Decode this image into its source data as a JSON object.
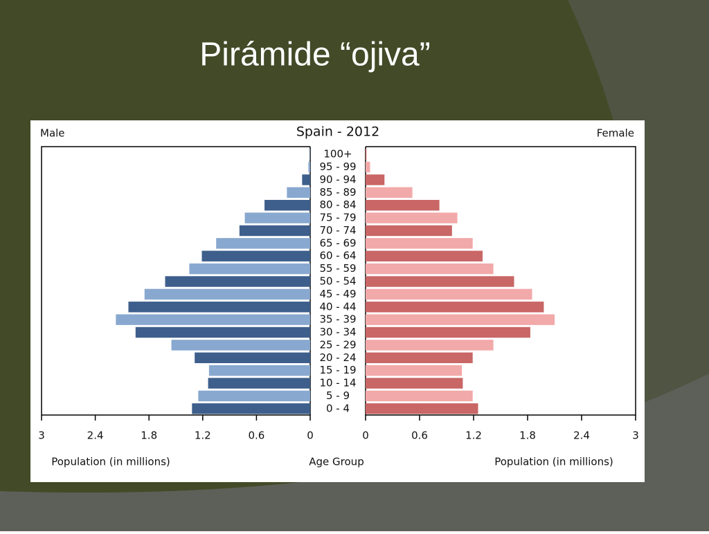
{
  "slide_title": "Pirámide “ojiva”",
  "chart_data": {
    "type": "pyramid",
    "title": "Spain - 2012",
    "left_label": "Male",
    "right_label": "Female",
    "left_axis_title": "Population (in millions)",
    "center_axis_title": "Age Group",
    "right_axis_title": "Population (in millions)",
    "categories": [
      "0 - 4",
      "5 - 9",
      "10 - 14",
      "15 - 19",
      "20 - 24",
      "25 - 29",
      "30 - 34",
      "35 - 39",
      "40 - 44",
      "45 - 49",
      "50 - 54",
      "55 - 59",
      "60 - 64",
      "65 - 69",
      "70 - 74",
      "75 - 79",
      "80 - 84",
      "85 - 89",
      "90 - 94",
      "95 - 99",
      "100+"
    ],
    "series": [
      {
        "name": "Male",
        "side": "left",
        "colors": [
          "#3e5f8c",
          "#88a8cf"
        ],
        "values": [
          1.32,
          1.25,
          1.14,
          1.13,
          1.29,
          1.55,
          1.95,
          2.17,
          2.03,
          1.85,
          1.62,
          1.35,
          1.21,
          1.05,
          0.79,
          0.73,
          0.51,
          0.26,
          0.09,
          0.02,
          0.005
        ]
      },
      {
        "name": "Female",
        "side": "right",
        "colors": [
          "#c96666",
          "#f2a9a9"
        ],
        "values": [
          1.25,
          1.19,
          1.08,
          1.07,
          1.19,
          1.42,
          1.83,
          2.1,
          1.98,
          1.85,
          1.65,
          1.42,
          1.3,
          1.19,
          0.96,
          1.02,
          0.82,
          0.52,
          0.21,
          0.05,
          0.01
        ]
      }
    ],
    "xlim": [
      0,
      3
    ],
    "xticks": [
      0,
      0.6,
      1.2,
      1.8,
      2.4,
      3
    ]
  }
}
